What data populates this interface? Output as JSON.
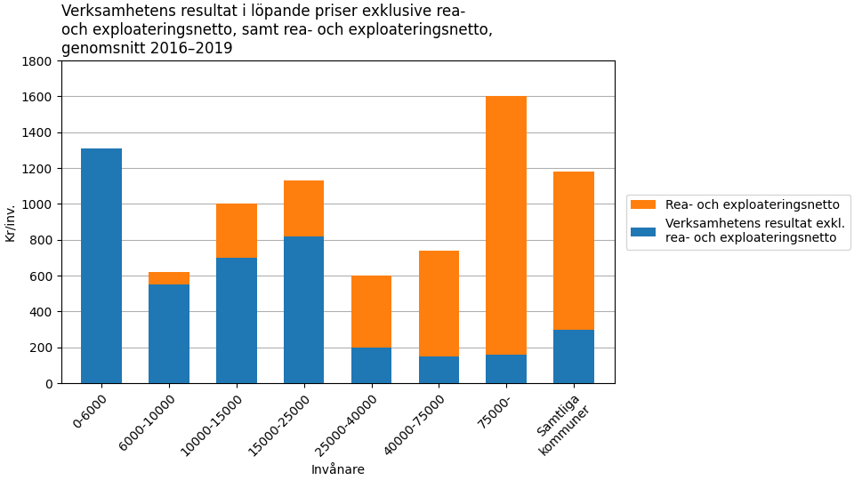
{
  "chart_data": {
    "type": "bar",
    "stacked": true,
    "title": "Verksamhetens resultat i löpande priser exklusive rea-\noch exploateringsnetto, samt rea- och exploateringsnetto,\ngenomsnitt 2016–2019",
    "categories": [
      "0-6000",
      "6000-10000",
      "10000-15000",
      "15000-25000",
      "25000-40000",
      "40000-75000",
      "75000-",
      "Samtliga\nkommuner"
    ],
    "series": [
      {
        "name": "Verksamhetens resultat exkl.\nrea- och exploateringsnetto",
        "values": [
          1310,
          550,
          700,
          820,
          200,
          150,
          160,
          300
        ]
      },
      {
        "name": "Rea- och exploateringsnetto",
        "values": [
          0,
          70,
          300,
          310,
          400,
          590,
          1440,
          880
        ]
      }
    ],
    "xlabel": "Invånare",
    "ylabel": "Kr/inv.",
    "ylim": [
      0,
      1800
    ],
    "yticks": [
      0,
      200,
      400,
      600,
      800,
      1000,
      1200,
      1400,
      1600,
      1800
    ],
    "grid": true,
    "legend": "right"
  }
}
